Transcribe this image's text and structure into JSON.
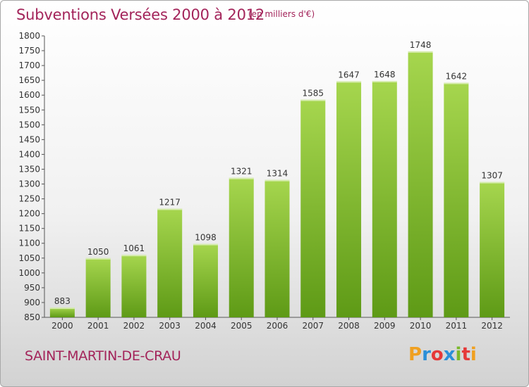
{
  "header": {
    "title": "Subventions Versées 2000 à 2012",
    "subtitle": "(en milliers d'€)"
  },
  "footer": {
    "place": "SAINT-MARTIN-DE-CRAU",
    "logo_text": "Proxiti"
  },
  "colors": {
    "bar_light": "#a6d64e",
    "bar_dark": "#5e9a16",
    "title": "#a3245a"
  },
  "chart_data": {
    "type": "bar",
    "title": "Subventions Versées 2000 à 2012",
    "subtitle": "(en milliers d'€)",
    "categories": [
      "2000",
      "2001",
      "2002",
      "2003",
      "2004",
      "2005",
      "2006",
      "2007",
      "2008",
      "2009",
      "2010",
      "2011",
      "2012"
    ],
    "values": [
      883,
      1050,
      1061,
      1217,
      1098,
      1321,
      1314,
      1585,
      1647,
      1648,
      1748,
      1642,
      1307
    ],
    "ylim": [
      850,
      1800
    ],
    "ytick_step": 50,
    "grid": false,
    "legend": "none"
  }
}
